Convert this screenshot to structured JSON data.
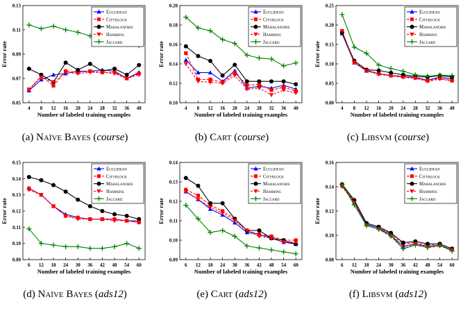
{
  "series_styles": [
    {
      "name": "Euclidean",
      "color": "#0000ff",
      "marker": "triangle-up"
    },
    {
      "name": "Cityblock",
      "color": "#ff0000",
      "marker": "square"
    },
    {
      "name": "Mahalanobis",
      "color": "#000000",
      "marker": "circle"
    },
    {
      "name": "Hamming",
      "color": "#ff0000",
      "marker": "triangle-down"
    },
    {
      "name": "Jaccard",
      "color": "#008000",
      "marker": "plus"
    }
  ],
  "chart_data": [
    {
      "type": "line",
      "caption": {
        "label": "(a)",
        "method": "Naïve Bayes",
        "dataset": "course"
      },
      "xlabel": "Number of labeled training examples",
      "ylabel": "Error rate",
      "x": [
        4,
        8,
        12,
        16,
        20,
        24,
        28,
        32,
        36,
        40
      ],
      "ylim": [
        0.05,
        0.13
      ],
      "yticks": [
        "0.05",
        "0.07",
        "0.09",
        "0.11",
        "0.13"
      ],
      "series": [
        {
          "name": "Euclidean",
          "values": [
            0.06,
            0.069,
            0.073,
            0.074,
            0.076,
            0.076,
            0.077,
            0.076,
            0.07,
            0.075
          ]
        },
        {
          "name": "Cityblock",
          "values": [
            0.061,
            0.072,
            0.064,
            0.076,
            0.075,
            0.076,
            0.075,
            0.075,
            0.07,
            0.074
          ]
        },
        {
          "name": "Mahalanobis",
          "values": [
            0.078,
            0.073,
            0.067,
            0.083,
            0.077,
            0.082,
            0.076,
            0.078,
            0.073,
            0.081
          ]
        },
        {
          "name": "Hamming",
          "values": [
            0.061,
            0.071,
            0.067,
            0.075,
            0.074,
            0.075,
            0.075,
            0.074,
            0.07,
            0.073
          ]
        },
        {
          "name": "Jaccard",
          "values": [
            0.114,
            0.111,
            0.113,
            0.11,
            0.108,
            0.105,
            0.102,
            0.101,
            0.099,
            0.097
          ]
        }
      ]
    },
    {
      "type": "line",
      "caption": {
        "label": "(b)",
        "method": "Cart",
        "dataset": "course"
      },
      "xlabel": "Number of labeled training examples",
      "ylabel": "Error rate",
      "x": [
        4,
        8,
        12,
        16,
        20,
        24,
        28,
        32,
        36,
        40
      ],
      "ylim": [
        0.1,
        0.2
      ],
      "yticks": [
        "0.10",
        "0.12",
        "0.14",
        "0.16",
        "0.18",
        "0.20"
      ],
      "series": [
        {
          "name": "Euclidean",
          "values": [
            0.144,
            0.131,
            0.131,
            0.122,
            0.133,
            0.115,
            0.117,
            0.115,
            0.118,
            0.114
          ]
        },
        {
          "name": "Cityblock",
          "values": [
            0.151,
            0.124,
            0.124,
            0.121,
            0.131,
            0.118,
            0.119,
            0.113,
            0.116,
            0.112
          ]
        },
        {
          "name": "Mahalanobis",
          "values": [
            0.158,
            0.148,
            0.143,
            0.128,
            0.139,
            0.122,
            0.122,
            0.122,
            0.122,
            0.119
          ]
        },
        {
          "name": "Hamming",
          "values": [
            0.14,
            0.122,
            0.121,
            0.12,
            0.128,
            0.114,
            0.115,
            0.108,
            0.113,
            0.11
          ]
        },
        {
          "name": "Jaccard",
          "values": [
            0.188,
            0.177,
            0.174,
            0.165,
            0.161,
            0.149,
            0.146,
            0.145,
            0.138,
            0.141
          ]
        }
      ]
    },
    {
      "type": "line",
      "caption": {
        "label": "(c)",
        "method": "Libsvm",
        "dataset": "course"
      },
      "xlabel": "Number of labeled training examples",
      "ylabel": "Error rate",
      "x": [
        4,
        8,
        12,
        16,
        20,
        24,
        28,
        32,
        36,
        40
      ],
      "ylim": [
        0.0,
        0.25
      ],
      "yticks": [
        "0.00",
        "0.05",
        "0.10",
        "0.15",
        "0.20",
        "0.25"
      ],
      "series": [
        {
          "name": "Euclidean",
          "values": [
            0.178,
            0.103,
            0.082,
            0.075,
            0.07,
            0.068,
            0.065,
            0.058,
            0.066,
            0.061
          ]
        },
        {
          "name": "Cityblock",
          "values": [
            0.183,
            0.104,
            0.084,
            0.075,
            0.07,
            0.067,
            0.064,
            0.057,
            0.063,
            0.057
          ]
        },
        {
          "name": "Mahalanobis",
          "values": [
            0.18,
            0.108,
            0.085,
            0.083,
            0.077,
            0.072,
            0.068,
            0.066,
            0.07,
            0.066
          ]
        },
        {
          "name": "Hamming",
          "values": [
            0.185,
            0.104,
            0.082,
            0.073,
            0.069,
            0.065,
            0.063,
            0.055,
            0.061,
            0.056
          ]
        },
        {
          "name": "Jaccard",
          "values": [
            0.227,
            0.143,
            0.127,
            0.097,
            0.088,
            0.081,
            0.072,
            0.068,
            0.071,
            0.07
          ]
        }
      ]
    },
    {
      "type": "line",
      "caption": {
        "label": "(d)",
        "method": "Naïve Bayes",
        "dataset": "ads12"
      },
      "xlabel": "Number of labeled training examples",
      "ylabel": "Error rate",
      "x": [
        6,
        12,
        18,
        24,
        30,
        36,
        42,
        48,
        54,
        60
      ],
      "ylim": [
        0.09,
        0.15
      ],
      "yticks": [
        "0.09",
        "0.10",
        "0.11",
        "0.12",
        "0.13",
        "0.14",
        "0.15"
      ],
      "series": [
        {
          "name": "Euclidean",
          "values": [
            0.134,
            0.13,
            0.123,
            0.118,
            0.116,
            0.115,
            0.115,
            0.115,
            0.114,
            0.114
          ]
        },
        {
          "name": "Cityblock",
          "values": [
            0.134,
            0.13,
            0.123,
            0.117,
            0.116,
            0.115,
            0.115,
            0.115,
            0.114,
            0.113
          ]
        },
        {
          "name": "Mahalanobis",
          "values": [
            0.141,
            0.139,
            0.136,
            0.132,
            0.127,
            0.123,
            0.12,
            0.118,
            0.117,
            0.115
          ]
        },
        {
          "name": "Hamming",
          "values": [
            0.133,
            0.13,
            0.123,
            0.117,
            0.115,
            0.115,
            0.115,
            0.114,
            0.114,
            0.113
          ]
        },
        {
          "name": "Jaccard",
          "values": [
            0.109,
            0.1,
            0.099,
            0.098,
            0.098,
            0.097,
            0.097,
            0.098,
            0.1,
            0.097
          ]
        }
      ]
    },
    {
      "type": "line",
      "caption": {
        "label": "(e)",
        "method": "Cart",
        "dataset": "ads12"
      },
      "xlabel": "Number of labeled training examples",
      "ylabel": "Error rate",
      "x": [
        6,
        12,
        18,
        24,
        30,
        36,
        42,
        48,
        54,
        60
      ],
      "ylim": [
        0.09,
        0.14
      ],
      "yticks": [
        "0.09",
        "0.10",
        "0.11",
        "0.12",
        "0.13",
        "0.14"
      ],
      "series": [
        {
          "name": "Euclidean",
          "values": [
            0.125,
            0.121,
            0.116,
            0.113,
            0.109,
            0.104,
            0.103,
            0.101,
            0.099,
            0.098
          ]
        },
        {
          "name": "Cityblock",
          "values": [
            0.126,
            0.123,
            0.118,
            0.115,
            0.111,
            0.105,
            0.103,
            0.102,
            0.1,
            0.1
          ]
        },
        {
          "name": "Mahalanobis",
          "values": [
            0.132,
            0.128,
            0.119,
            0.119,
            0.111,
            0.105,
            0.105,
            0.101,
            0.1,
            0.098
          ]
        },
        {
          "name": "Hamming",
          "values": [
            0.125,
            0.121,
            0.117,
            0.114,
            0.11,
            0.105,
            0.102,
            0.101,
            0.099,
            0.099
          ]
        },
        {
          "name": "Jaccard",
          "values": [
            0.118,
            0.111,
            0.104,
            0.105,
            0.102,
            0.097,
            0.096,
            0.095,
            0.094,
            0.093
          ]
        }
      ]
    },
    {
      "type": "line",
      "caption": {
        "label": "(f)",
        "method": "Libsvm",
        "dataset": "ads12"
      },
      "xlabel": "Number of labeled training examples",
      "ylabel": "Error rate",
      "x": [
        6,
        12,
        18,
        24,
        30,
        36,
        42,
        48,
        54,
        60
      ],
      "ylim": [
        0.08,
        0.16
      ],
      "yticks": [
        "0.08",
        "0.10",
        "0.12",
        "0.14",
        "0.16"
      ],
      "series": [
        {
          "name": "Euclidean",
          "values": [
            0.141,
            0.127,
            0.109,
            0.106,
            0.1,
            0.091,
            0.093,
            0.091,
            0.092,
            0.088
          ]
        },
        {
          "name": "Cityblock",
          "values": [
            0.141,
            0.128,
            0.11,
            0.107,
            0.101,
            0.093,
            0.094,
            0.092,
            0.093,
            0.089
          ]
        },
        {
          "name": "Mahalanobis",
          "values": [
            0.142,
            0.129,
            0.11,
            0.107,
            0.102,
            0.094,
            0.095,
            0.093,
            0.093,
            0.089
          ]
        },
        {
          "name": "Hamming",
          "values": [
            0.14,
            0.127,
            0.108,
            0.105,
            0.099,
            0.089,
            0.093,
            0.09,
            0.091,
            0.088
          ]
        },
        {
          "name": "Jaccard",
          "values": [
            0.142,
            0.125,
            0.108,
            0.105,
            0.1,
            0.089,
            0.092,
            0.09,
            0.092,
            0.087
          ]
        }
      ]
    }
  ]
}
